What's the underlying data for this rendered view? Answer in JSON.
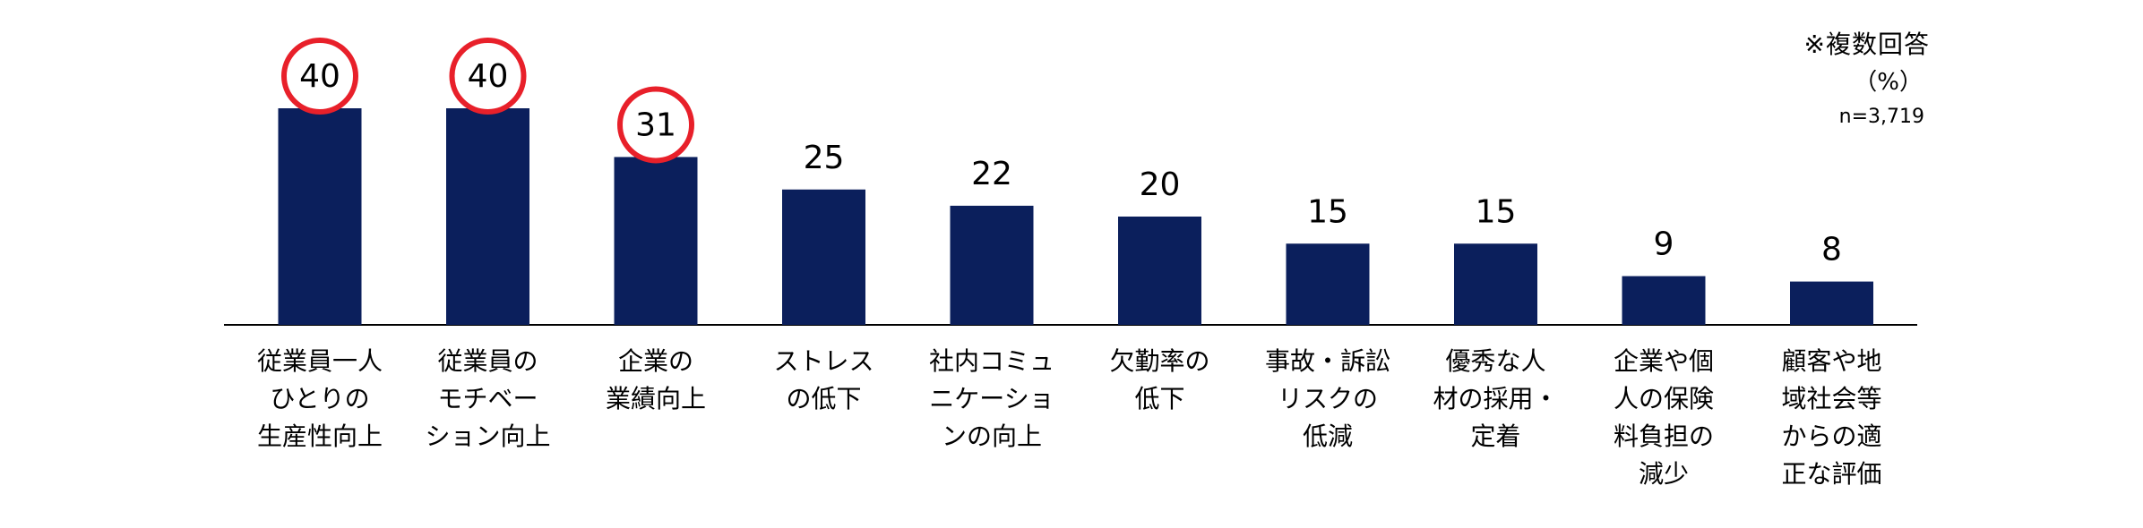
{
  "notes": {
    "answer_type": "※複数回答",
    "unit": "（%）",
    "sample": "n=3,719"
  },
  "colors": {
    "bar": "#0b1f5c",
    "highlight_circle": "#e8202a",
    "axis": "#000000",
    "text": "#000000"
  },
  "chart_data": {
    "type": "bar",
    "categories": [
      [
        "従業員一人",
        "ひとりの",
        "生産性向上"
      ],
      [
        "従業員の",
        "モチベー",
        "ション向上"
      ],
      [
        "企業の",
        "業績向上"
      ],
      [
        "ストレス",
        "の低下"
      ],
      [
        "社内コミュ",
        "ニケーショ",
        "ンの向上"
      ],
      [
        "欠勤率の",
        "低下"
      ],
      [
        "事故・訴訟",
        "リスクの",
        "低減"
      ],
      [
        "優秀な人",
        "材の採用・",
        "定着"
      ],
      [
        "企業や個",
        "人の保険",
        "料負担の",
        "減少"
      ],
      [
        "顧客や地",
        "域社会等",
        "からの適",
        "正な評価"
      ]
    ],
    "values": [
      40,
      40,
      31,
      25,
      22,
      20,
      15,
      15,
      9,
      8
    ],
    "highlighted": [
      true,
      true,
      true,
      false,
      false,
      false,
      false,
      false,
      false,
      false
    ],
    "ylim": [
      0,
      40
    ],
    "grid": false,
    "legend": "none"
  }
}
